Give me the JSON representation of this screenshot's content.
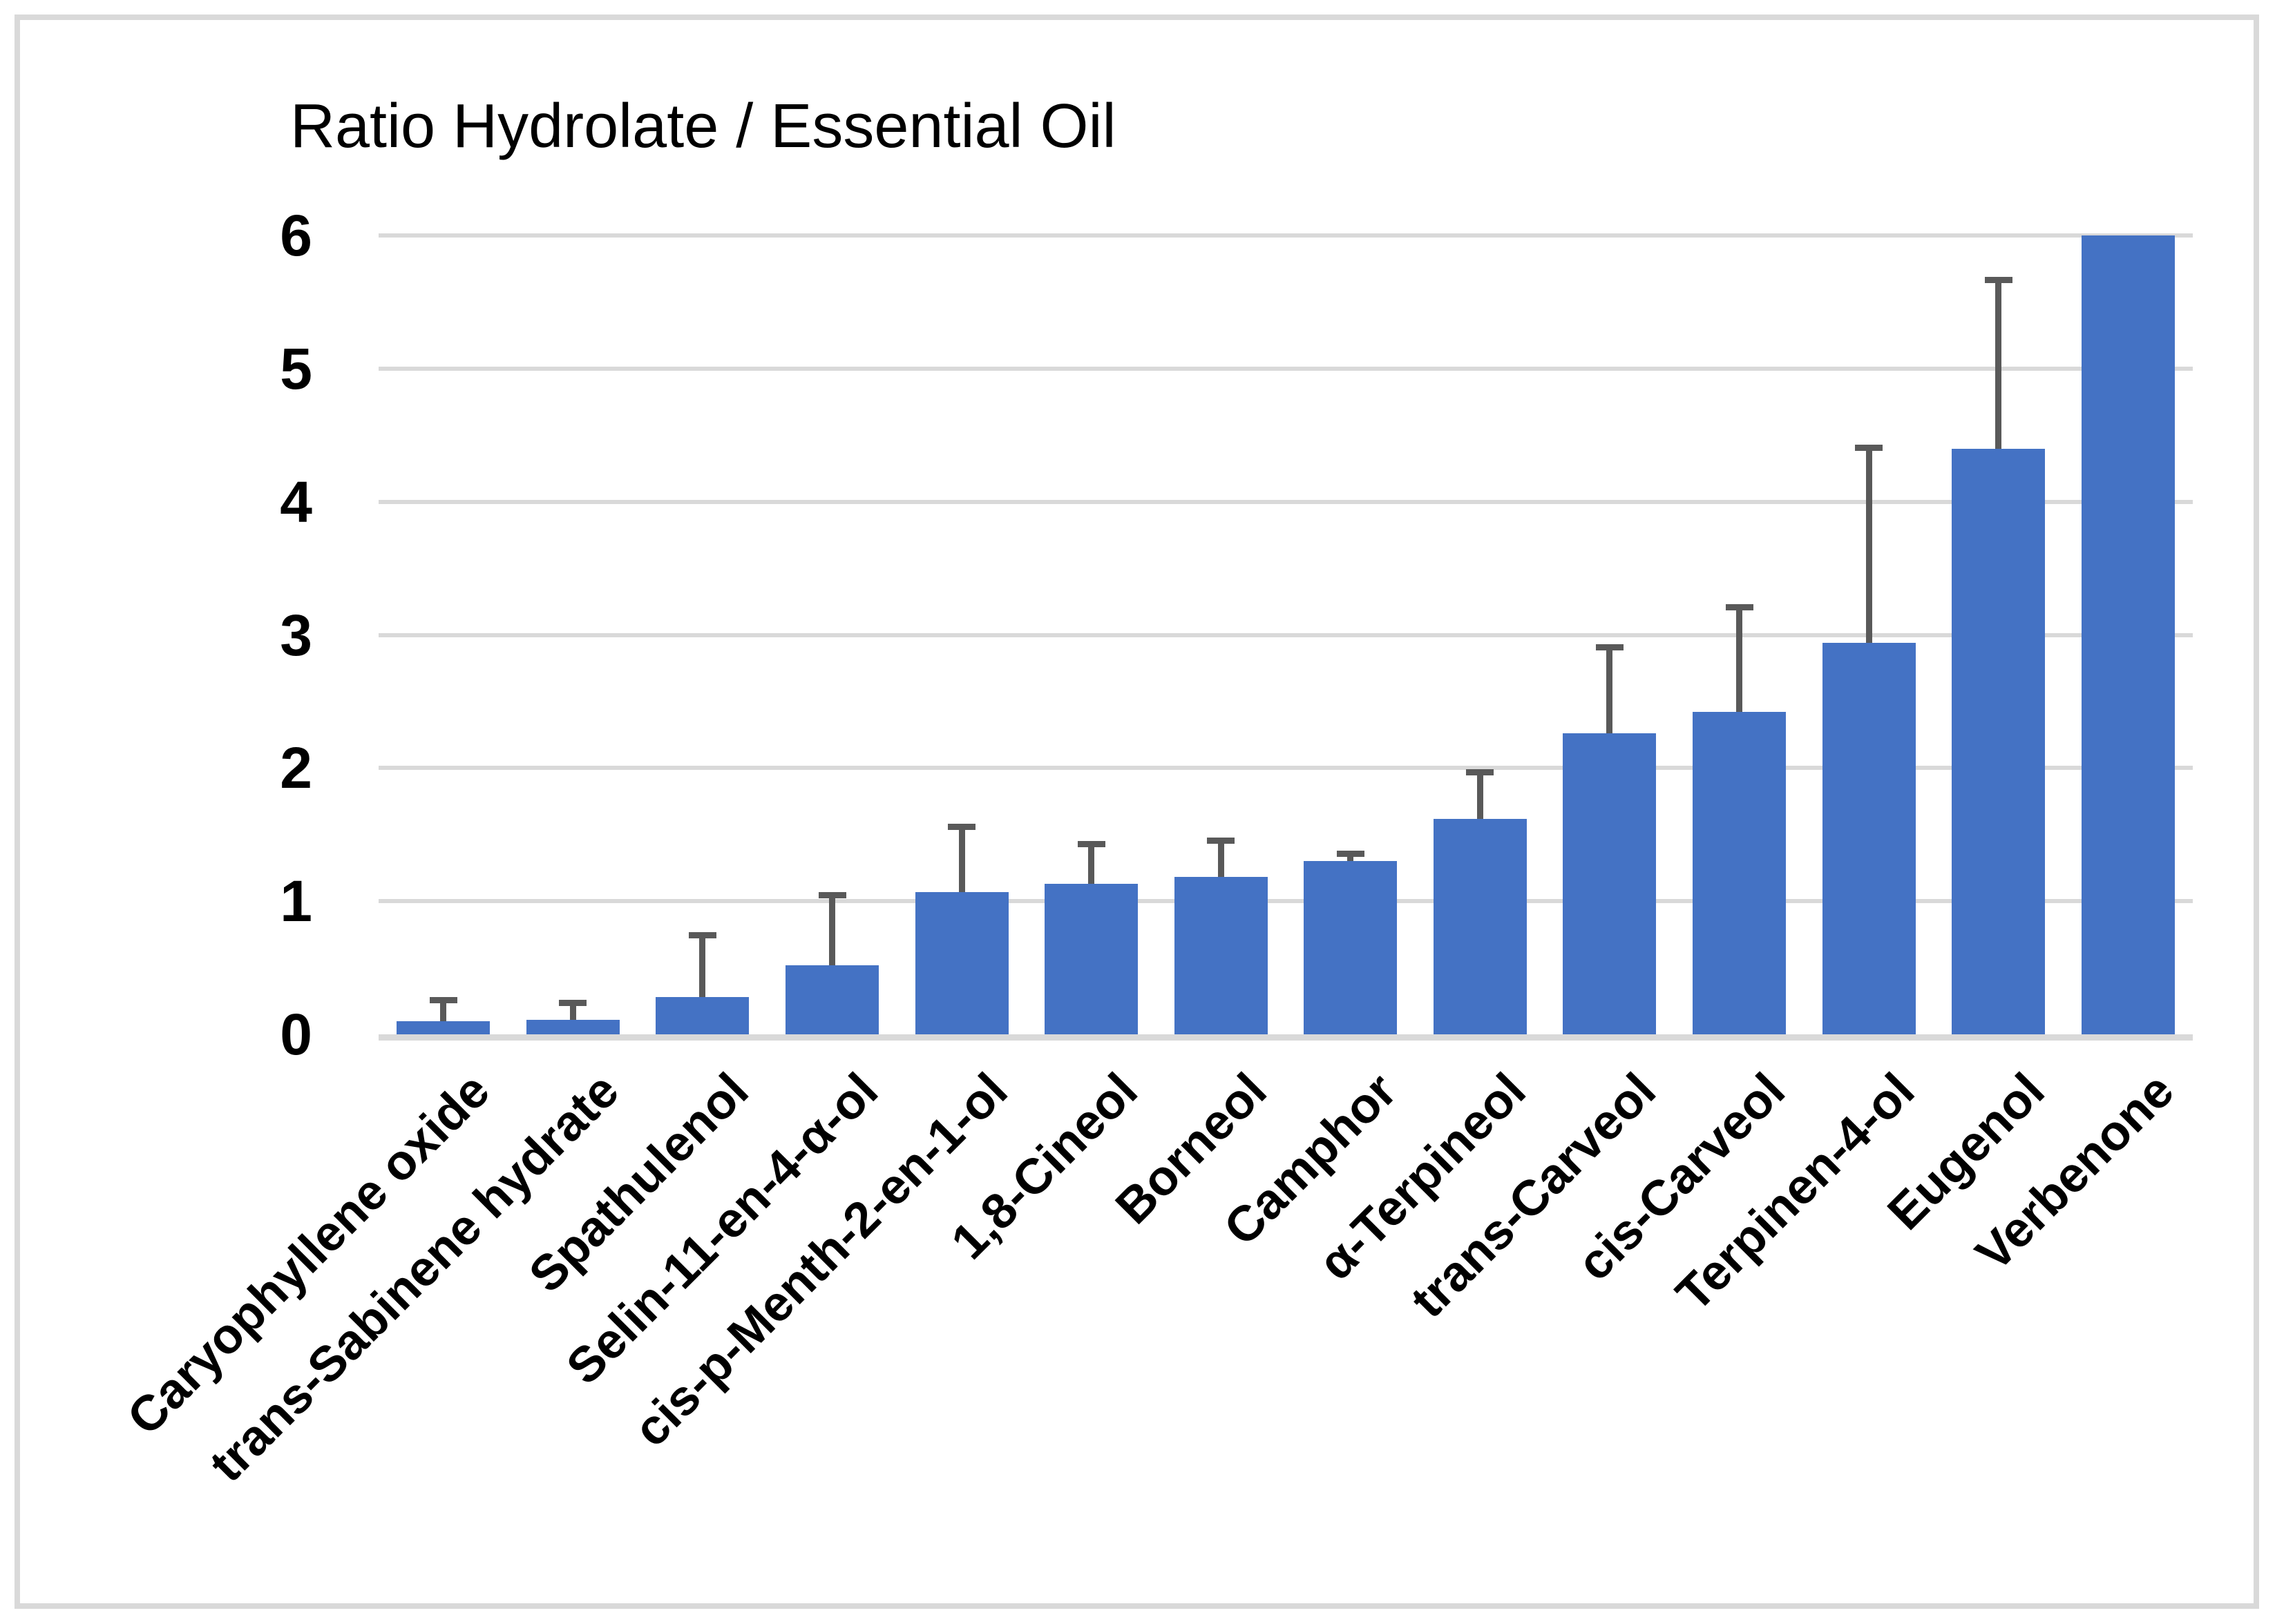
{
  "chart_data": {
    "type": "bar",
    "title": "Ratio Hydrolate / Essential Oil",
    "categories": [
      "Caryophyllene oxide",
      "trans-Sabinene hydrate",
      "Spathulenol",
      "Selin-11-en-4-α-ol",
      "cis-p-Menth-2-en-1-ol",
      "1,8-Cineol",
      "Borneol",
      "Camphor",
      "α-Terpineol",
      "trans-Carveol",
      "cis-Carveol",
      "Terpinen-4-ol",
      "Eugenol",
      "Verbenone"
    ],
    "values": [
      0.1,
      0.11,
      0.28,
      0.52,
      1.07,
      1.13,
      1.18,
      1.3,
      1.62,
      2.26,
      2.42,
      2.94,
      4.4,
      6.0
    ],
    "error_plus": [
      0.18,
      0.15,
      0.49,
      0.55,
      0.51,
      0.32,
      0.3,
      0.08,
      0.37,
      0.67,
      0.81,
      1.49,
      1.29,
      0
    ],
    "xlabel": "",
    "ylabel": "",
    "ylim": [
      0,
      6
    ],
    "yticks": [
      0,
      1,
      2,
      3,
      4,
      5,
      6
    ],
    "grid": true,
    "legend": "none",
    "colors": {
      "bar": "#4472C4",
      "error_bar": "#595959",
      "gridline": "#D9D9D9",
      "axis_line": "#D9D9D9",
      "border": "#D9D9D9",
      "text": "#000000",
      "background": "#FFFFFF"
    }
  }
}
